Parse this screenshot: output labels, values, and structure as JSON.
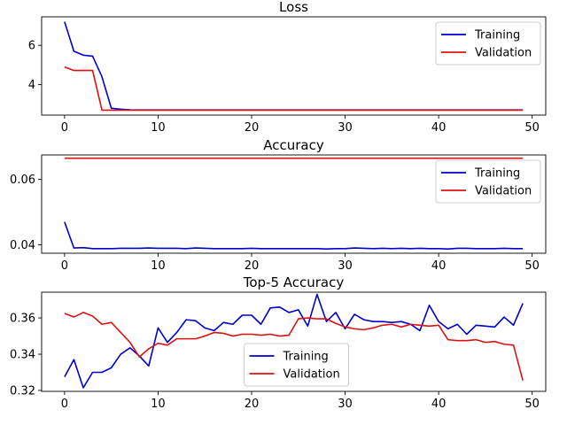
{
  "chart_data": [
    {
      "type": "line",
      "title": "Loss",
      "xlabel": "",
      "ylabel": "",
      "xlim": [
        -2.45,
        51.45
      ],
      "ylim": [
        2.45,
        7.45
      ],
      "xticks": [
        0,
        10,
        20,
        30,
        40,
        50
      ],
      "yticks": [
        4,
        6
      ],
      "grid": false,
      "legend": "upper right",
      "series": [
        {
          "name": "Training",
          "color": "#0000cc",
          "x": [
            0,
            1,
            2,
            3,
            4,
            5,
            6,
            7,
            8,
            9,
            10,
            11,
            12,
            13,
            14,
            15,
            16,
            17,
            18,
            19,
            20,
            21,
            22,
            23,
            24,
            25,
            26,
            27,
            28,
            29,
            30,
            31,
            32,
            33,
            34,
            35,
            36,
            37,
            38,
            39,
            40,
            41,
            42,
            43,
            44,
            45,
            46,
            47,
            48,
            49
          ],
          "values": [
            7.2,
            5.7,
            5.5,
            5.45,
            4.4,
            2.8,
            2.75,
            2.72,
            2.71,
            2.71,
            2.71,
            2.71,
            2.71,
            2.71,
            2.71,
            2.71,
            2.71,
            2.71,
            2.71,
            2.71,
            2.71,
            2.71,
            2.71,
            2.71,
            2.71,
            2.71,
            2.71,
            2.71,
            2.71,
            2.71,
            2.71,
            2.71,
            2.71,
            2.71,
            2.71,
            2.71,
            2.71,
            2.71,
            2.71,
            2.71,
            2.71,
            2.71,
            2.71,
            2.71,
            2.71,
            2.71,
            2.71,
            2.71,
            2.71,
            2.71
          ]
        },
        {
          "name": "Validation",
          "color": "#dd1111",
          "x": [
            0,
            1,
            2,
            3,
            4,
            5,
            6,
            7,
            8,
            9,
            10,
            11,
            12,
            13,
            14,
            15,
            16,
            17,
            18,
            19,
            20,
            21,
            22,
            23,
            24,
            25,
            26,
            27,
            28,
            29,
            30,
            31,
            32,
            33,
            34,
            35,
            36,
            37,
            38,
            39,
            40,
            41,
            42,
            43,
            44,
            45,
            46,
            47,
            48,
            49
          ],
          "values": [
            4.9,
            4.72,
            4.72,
            4.72,
            2.7,
            2.7,
            2.7,
            2.7,
            2.7,
            2.7,
            2.7,
            2.7,
            2.7,
            2.7,
            2.7,
            2.7,
            2.7,
            2.7,
            2.7,
            2.7,
            2.7,
            2.7,
            2.7,
            2.7,
            2.7,
            2.7,
            2.7,
            2.7,
            2.7,
            2.7,
            2.7,
            2.7,
            2.7,
            2.7,
            2.7,
            2.7,
            2.7,
            2.7,
            2.7,
            2.7,
            2.7,
            2.7,
            2.7,
            2.7,
            2.7,
            2.7,
            2.7,
            2.7,
            2.7,
            2.7
          ]
        }
      ]
    },
    {
      "type": "line",
      "title": "Accuracy",
      "xlabel": "",
      "ylabel": "",
      "xlim": [
        -2.45,
        51.45
      ],
      "ylim": [
        0.0374,
        0.0675
      ],
      "xticks": [
        0,
        10,
        20,
        30,
        40,
        50
      ],
      "yticks": [
        0.04,
        0.06
      ],
      "grid": false,
      "legend": "upper right",
      "series": [
        {
          "name": "Training",
          "color": "#0000cc",
          "x": [
            0,
            1,
            2,
            3,
            4,
            5,
            6,
            7,
            8,
            9,
            10,
            11,
            12,
            13,
            14,
            15,
            16,
            17,
            18,
            19,
            20,
            21,
            22,
            23,
            24,
            25,
            26,
            27,
            28,
            29,
            30,
            31,
            32,
            33,
            34,
            35,
            36,
            37,
            38,
            39,
            40,
            41,
            42,
            43,
            44,
            45,
            46,
            47,
            48,
            49
          ],
          "values": [
            0.047,
            0.039,
            0.0391,
            0.0388,
            0.0388,
            0.0388,
            0.0389,
            0.0389,
            0.0389,
            0.039,
            0.0389,
            0.0389,
            0.0389,
            0.0388,
            0.039,
            0.0389,
            0.0388,
            0.0388,
            0.0388,
            0.0388,
            0.0389,
            0.0388,
            0.0388,
            0.0388,
            0.0388,
            0.0388,
            0.0388,
            0.0388,
            0.0387,
            0.0388,
            0.0388,
            0.039,
            0.0389,
            0.0388,
            0.0389,
            0.0388,
            0.0389,
            0.0388,
            0.0389,
            0.0388,
            0.0388,
            0.0387,
            0.0389,
            0.0389,
            0.0388,
            0.0388,
            0.0388,
            0.0389,
            0.0388,
            0.0388
          ]
        },
        {
          "name": "Validation",
          "color": "#dd1111",
          "x": [
            0,
            1,
            2,
            3,
            4,
            5,
            6,
            7,
            8,
            9,
            10,
            11,
            12,
            13,
            14,
            15,
            16,
            17,
            18,
            19,
            20,
            21,
            22,
            23,
            24,
            25,
            26,
            27,
            28,
            29,
            30,
            31,
            32,
            33,
            34,
            35,
            36,
            37,
            38,
            39,
            40,
            41,
            42,
            43,
            44,
            45,
            46,
            47,
            48,
            49
          ],
          "values": [
            0.0665,
            0.0665,
            0.0665,
            0.0665,
            0.0665,
            0.0665,
            0.0665,
            0.0665,
            0.0665,
            0.0665,
            0.0665,
            0.0665,
            0.0665,
            0.0665,
            0.0665,
            0.0665,
            0.0665,
            0.0665,
            0.0665,
            0.0665,
            0.0665,
            0.0665,
            0.0665,
            0.0665,
            0.0665,
            0.0665,
            0.0665,
            0.0665,
            0.0665,
            0.0665,
            0.0665,
            0.0665,
            0.0665,
            0.0665,
            0.0665,
            0.0665,
            0.0665,
            0.0665,
            0.0665,
            0.0665,
            0.0665,
            0.0665,
            0.0665,
            0.0665,
            0.0665,
            0.0665,
            0.0665,
            0.0665,
            0.0665,
            0.0665
          ]
        }
      ]
    },
    {
      "type": "line",
      "title": "Top-5 Accuracy",
      "xlabel": "",
      "ylabel": "",
      "xlim": [
        -2.45,
        51.45
      ],
      "ylim": [
        0.3195,
        0.3742
      ],
      "xticks": [
        0,
        10,
        20,
        30,
        40,
        50
      ],
      "yticks": [
        0.32,
        0.34,
        0.36
      ],
      "grid": false,
      "legend": "lower center",
      "series": [
        {
          "name": "Training",
          "color": "#0000cc",
          "x": [
            0,
            1,
            2,
            3,
            4,
            5,
            6,
            7,
            8,
            9,
            10,
            11,
            12,
            13,
            14,
            15,
            16,
            17,
            18,
            19,
            20,
            21,
            22,
            23,
            24,
            25,
            26,
            27,
            28,
            29,
            30,
            31,
            32,
            33,
            34,
            35,
            36,
            37,
            38,
            39,
            40,
            41,
            42,
            43,
            44,
            45,
            46,
            47,
            48,
            49
          ],
          "values": [
            0.3275,
            0.337,
            0.3215,
            0.33,
            0.33,
            0.3325,
            0.34,
            0.3435,
            0.339,
            0.3335,
            0.3545,
            0.3465,
            0.352,
            0.359,
            0.3585,
            0.3545,
            0.353,
            0.3575,
            0.3565,
            0.3615,
            0.3615,
            0.3565,
            0.3655,
            0.366,
            0.363,
            0.3645,
            0.3555,
            0.373,
            0.358,
            0.363,
            0.354,
            0.362,
            0.359,
            0.358,
            0.358,
            0.3575,
            0.358,
            0.3565,
            0.353,
            0.367,
            0.358,
            0.354,
            0.3565,
            0.351,
            0.356,
            0.3555,
            0.355,
            0.3605,
            0.356,
            0.368
          ]
        },
        {
          "name": "Validation",
          "color": "#dd1111",
          "x": [
            0,
            1,
            2,
            3,
            4,
            5,
            6,
            7,
            8,
            9,
            10,
            11,
            12,
            13,
            14,
            15,
            16,
            17,
            18,
            19,
            20,
            21,
            22,
            23,
            24,
            25,
            26,
            27,
            28,
            29,
            30,
            31,
            32,
            33,
            34,
            35,
            36,
            37,
            38,
            39,
            40,
            41,
            42,
            43,
            44,
            45,
            46,
            47,
            48,
            49
          ],
          "values": [
            0.3625,
            0.3605,
            0.363,
            0.361,
            0.3565,
            0.3575,
            0.352,
            0.3465,
            0.3385,
            0.343,
            0.346,
            0.345,
            0.3485,
            0.3485,
            0.3485,
            0.35,
            0.352,
            0.3515,
            0.35,
            0.351,
            0.351,
            0.3505,
            0.351,
            0.35,
            0.3505,
            0.3595,
            0.36,
            0.3595,
            0.3595,
            0.357,
            0.355,
            0.354,
            0.3535,
            0.3545,
            0.356,
            0.3565,
            0.355,
            0.3565,
            0.356,
            0.3555,
            0.356,
            0.348,
            0.3475,
            0.3475,
            0.348,
            0.3465,
            0.347,
            0.3455,
            0.345,
            0.3255
          ]
        }
      ]
    }
  ]
}
